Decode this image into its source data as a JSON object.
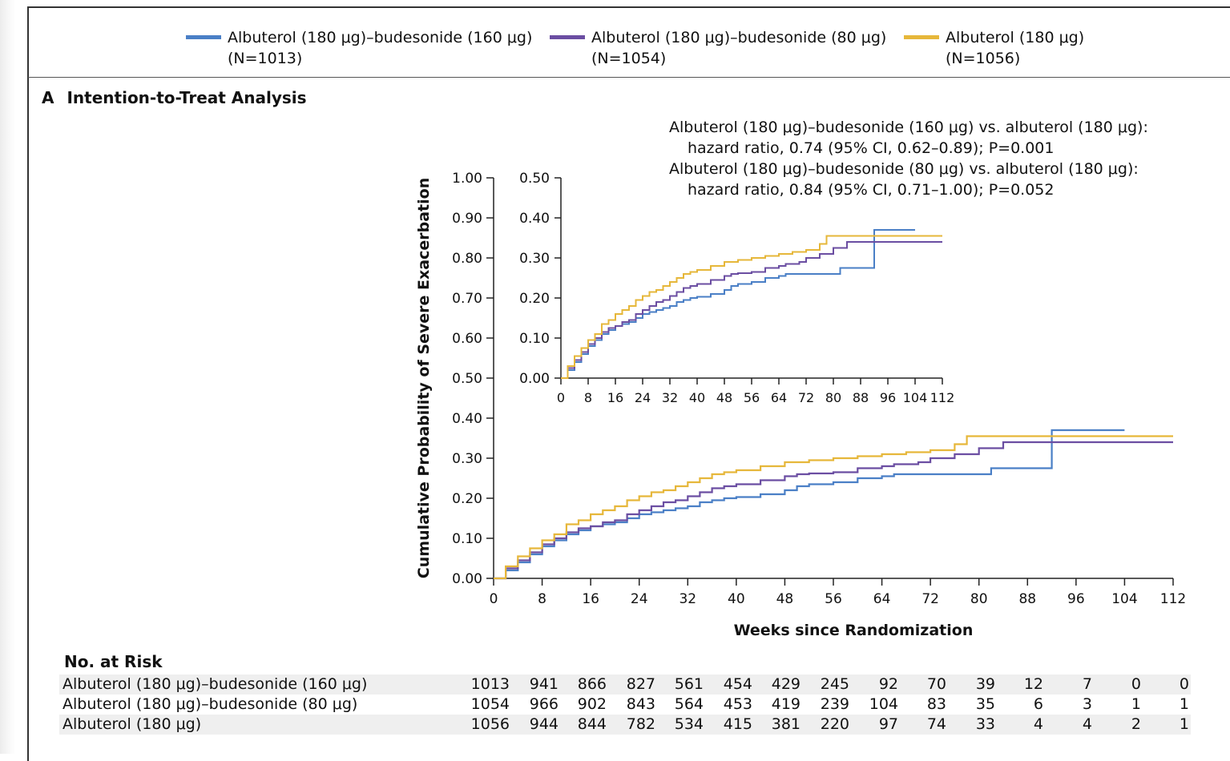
{
  "legend": [
    {
      "label": "Albuterol (180 μg)–budesonide (160 μg)",
      "n": "(N=1013)",
      "color": "#4a7fc6"
    },
    {
      "label": "Albuterol (180 μg)–budesonide (80 μg)",
      "n": "(N=1054)",
      "color": "#6b4ea2"
    },
    {
      "label": "Albuterol (180 μg)",
      "n": "(N=1056)",
      "color": "#e6b73a"
    }
  ],
  "panel": {
    "letter": "A",
    "title": "Intention-to-Treat Analysis"
  },
  "annotations": [
    "Albuterol (180 μg)–budesonide (160 μg) vs. albuterol (180 μg):",
    "hazard ratio, 0.74 (95% CI, 0.62–0.89); P=0.001",
    "Albuterol (180 μg)–budesonide (80 μg) vs. albuterol (180 μg):",
    "hazard ratio, 0.84 (95% CI, 0.71–1.00); P=0.052"
  ],
  "chart_data": {
    "type": "line",
    "step": true,
    "xlabel": "Weeks since Randomization",
    "ylabel": "Cumulative Probability of Severe Exacerbation",
    "xlim": [
      0,
      112
    ],
    "ylim": [
      0,
      1.0
    ],
    "xticks": [
      "0",
      "8",
      "16",
      "24",
      "32",
      "40",
      "48",
      "56",
      "64",
      "72",
      "80",
      "88",
      "96",
      "104",
      "112"
    ],
    "yticks": [
      "0.00",
      "0.10",
      "0.20",
      "0.30",
      "0.40",
      "0.50",
      "0.60",
      "0.70",
      "0.80",
      "0.90",
      "1.00"
    ],
    "inset": {
      "ylim": [
        0,
        0.5
      ],
      "yticks": [
        "0.00",
        "0.10",
        "0.20",
        "0.30",
        "0.40",
        "0.50"
      ],
      "xticks": [
        "0",
        "8",
        "16",
        "24",
        "32",
        "40",
        "48",
        "56",
        "64",
        "72",
        "80",
        "88",
        "96",
        "104",
        "112"
      ]
    },
    "series": [
      {
        "name": "Albuterol (180 μg)–budesonide (160 μg)",
        "color": "#4a7fc6",
        "points": [
          [
            0,
            0
          ],
          [
            2,
            0.02
          ],
          [
            4,
            0.04
          ],
          [
            6,
            0.06
          ],
          [
            8,
            0.08
          ],
          [
            10,
            0.095
          ],
          [
            12,
            0.11
          ],
          [
            14,
            0.12
          ],
          [
            16,
            0.13
          ],
          [
            18,
            0.135
          ],
          [
            20,
            0.14
          ],
          [
            22,
            0.15
          ],
          [
            24,
            0.16
          ],
          [
            26,
            0.165
          ],
          [
            28,
            0.17
          ],
          [
            30,
            0.175
          ],
          [
            32,
            0.18
          ],
          [
            34,
            0.19
          ],
          [
            36,
            0.195
          ],
          [
            38,
            0.2
          ],
          [
            40,
            0.203
          ],
          [
            44,
            0.21
          ],
          [
            48,
            0.22
          ],
          [
            50,
            0.23
          ],
          [
            52,
            0.235
          ],
          [
            56,
            0.24
          ],
          [
            60,
            0.25
          ],
          [
            64,
            0.255
          ],
          [
            66,
            0.26
          ],
          [
            70,
            0.26
          ],
          [
            74,
            0.26
          ],
          [
            78,
            0.26
          ],
          [
            82,
            0.26
          ],
          [
            82,
            0.275
          ],
          [
            92,
            0.275
          ],
          [
            92,
            0.37
          ],
          [
            104,
            0.37
          ]
        ]
      },
      {
        "name": "Albuterol (180 μg)–budesonide (80 μg)",
        "color": "#6b4ea2",
        "points": [
          [
            0,
            0
          ],
          [
            2,
            0.025
          ],
          [
            4,
            0.045
          ],
          [
            6,
            0.065
          ],
          [
            8,
            0.085
          ],
          [
            10,
            0.1
          ],
          [
            12,
            0.115
          ],
          [
            14,
            0.125
          ],
          [
            16,
            0.13
          ],
          [
            18,
            0.14
          ],
          [
            20,
            0.145
          ],
          [
            22,
            0.16
          ],
          [
            24,
            0.17
          ],
          [
            26,
            0.18
          ],
          [
            28,
            0.19
          ],
          [
            30,
            0.195
          ],
          [
            32,
            0.205
          ],
          [
            34,
            0.215
          ],
          [
            36,
            0.225
          ],
          [
            38,
            0.23
          ],
          [
            40,
            0.235
          ],
          [
            44,
            0.245
          ],
          [
            48,
            0.255
          ],
          [
            50,
            0.26
          ],
          [
            52,
            0.262
          ],
          [
            56,
            0.265
          ],
          [
            60,
            0.275
          ],
          [
            64,
            0.28
          ],
          [
            66,
            0.285
          ],
          [
            70,
            0.29
          ],
          [
            72,
            0.3
          ],
          [
            76,
            0.3
          ],
          [
            76,
            0.31
          ],
          [
            80,
            0.31
          ],
          [
            80,
            0.325
          ],
          [
            84,
            0.325
          ],
          [
            84,
            0.34
          ],
          [
            112,
            0.34
          ]
        ]
      },
      {
        "name": "Albuterol (180 μg)",
        "color": "#e6b73a",
        "points": [
          [
            0,
            0
          ],
          [
            2,
            0.03
          ],
          [
            4,
            0.055
          ],
          [
            6,
            0.075
          ],
          [
            8,
            0.095
          ],
          [
            10,
            0.11
          ],
          [
            12,
            0.135
          ],
          [
            14,
            0.145
          ],
          [
            16,
            0.16
          ],
          [
            18,
            0.17
          ],
          [
            20,
            0.18
          ],
          [
            22,
            0.195
          ],
          [
            24,
            0.205
          ],
          [
            26,
            0.215
          ],
          [
            28,
            0.22
          ],
          [
            30,
            0.23
          ],
          [
            32,
            0.24
          ],
          [
            34,
            0.25
          ],
          [
            36,
            0.26
          ],
          [
            38,
            0.265
          ],
          [
            40,
            0.27
          ],
          [
            44,
            0.28
          ],
          [
            48,
            0.29
          ],
          [
            52,
            0.295
          ],
          [
            56,
            0.3
          ],
          [
            60,
            0.305
          ],
          [
            64,
            0.31
          ],
          [
            68,
            0.315
          ],
          [
            72,
            0.32
          ],
          [
            76,
            0.32
          ],
          [
            76,
            0.335
          ],
          [
            78,
            0.335
          ],
          [
            78,
            0.355
          ],
          [
            112,
            0.355
          ]
        ]
      }
    ]
  },
  "risk": {
    "title": "No. at Risk",
    "rows": [
      {
        "name": "Albuterol (180 μg)–budesonide (160 μg)",
        "values": [
          "1013",
          "941",
          "866",
          "827",
          "561",
          "454",
          "429",
          "245",
          "92",
          "70",
          "39",
          "12",
          "7",
          "0",
          "0"
        ]
      },
      {
        "name": "Albuterol (180 μg)–budesonide (80 μg)",
        "values": [
          "1054",
          "966",
          "902",
          "843",
          "564",
          "453",
          "419",
          "239",
          "104",
          "83",
          "35",
          "6",
          "3",
          "1",
          "1"
        ]
      },
      {
        "name": "Albuterol (180 μg)",
        "values": [
          "1056",
          "944",
          "844",
          "782",
          "534",
          "415",
          "381",
          "220",
          "97",
          "74",
          "33",
          "4",
          "4",
          "2",
          "1"
        ]
      }
    ]
  }
}
